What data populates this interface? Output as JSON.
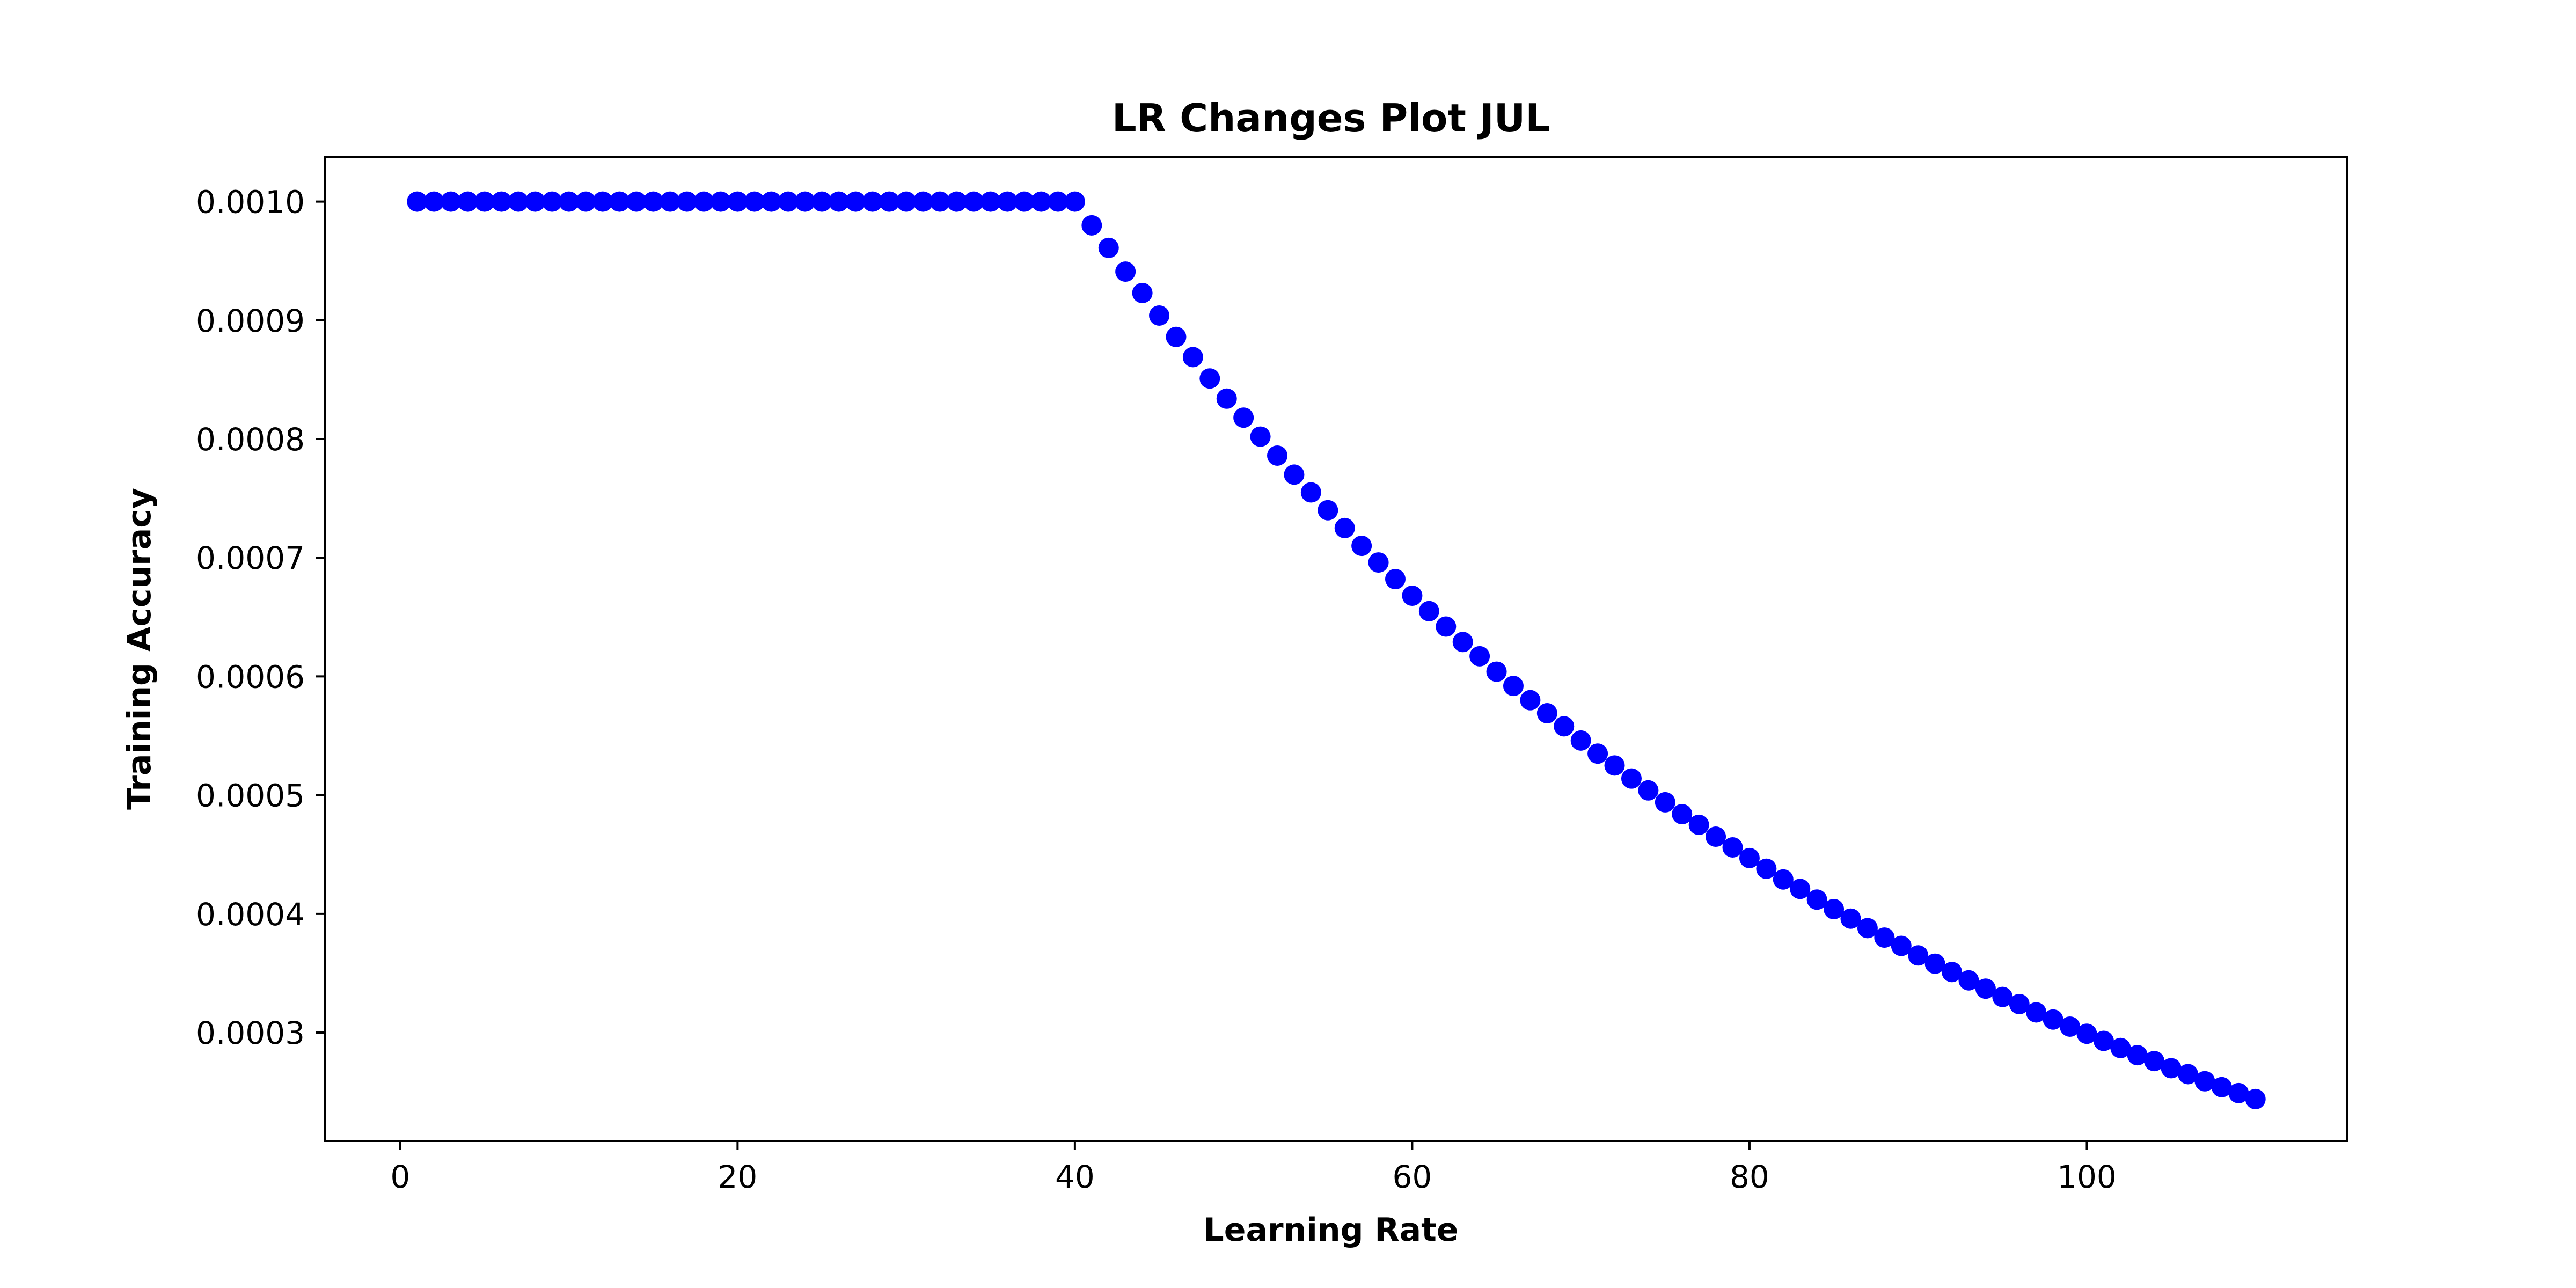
{
  "chart_data": {
    "type": "scatter",
    "title": "LR Changes Plot JUL",
    "xlabel": "Learning Rate",
    "ylabel": "Training Accuracy",
    "xlim": [
      -4.45,
      115.45
    ],
    "ylim": [
      0.0002087,
      0.0010378
    ],
    "xticks": [
      0,
      20,
      40,
      60,
      80,
      100
    ],
    "xtick_labels": [
      "0",
      "20",
      "40",
      "60",
      "80",
      "100"
    ],
    "yticks": [
      0.0003,
      0.0004,
      0.0005,
      0.0006,
      0.0007,
      0.0008,
      0.0009,
      0.001
    ],
    "ytick_labels": [
      "0.0003",
      "0.0004",
      "0.0005",
      "0.0006",
      "0.0007",
      "0.0008",
      "0.0009",
      "0.0010"
    ],
    "grid": false,
    "legend": "none",
    "marker_color": "#0000ff",
    "series": [
      {
        "x": [
          1,
          2,
          3,
          4,
          5,
          6,
          7,
          8,
          9,
          10,
          11,
          12,
          13,
          14,
          15,
          16,
          17,
          18,
          19,
          20,
          21,
          22,
          23,
          24,
          25,
          26,
          27,
          28,
          29,
          30,
          31,
          32,
          33,
          34,
          35,
          36,
          37,
          38,
          39,
          40,
          41,
          42,
          43,
          44,
          45,
          46,
          47,
          48,
          49,
          50,
          51,
          52,
          53,
          54,
          55,
          56,
          57,
          58,
          59,
          60,
          61,
          62,
          63,
          64,
          65,
          66,
          67,
          68,
          69,
          70,
          71,
          72,
          73,
          74,
          75,
          76,
          77,
          78,
          79,
          80,
          81,
          82,
          83,
          84,
          85,
          86,
          87,
          88,
          89,
          90,
          91,
          92,
          93,
          94,
          95,
          96,
          97,
          98,
          99,
          100,
          101,
          102,
          103,
          104,
          105,
          106,
          107,
          108,
          109,
          110
        ],
        "y": [
          0.001,
          0.001,
          0.001,
          0.001,
          0.001,
          0.001,
          0.001,
          0.001,
          0.001,
          0.001,
          0.001,
          0.001,
          0.001,
          0.001,
          0.001,
          0.001,
          0.001,
          0.001,
          0.001,
          0.001,
          0.001,
          0.001,
          0.001,
          0.001,
          0.001,
          0.001,
          0.001,
          0.001,
          0.001,
          0.001,
          0.001,
          0.001,
          0.001,
          0.001,
          0.001,
          0.001,
          0.001,
          0.001,
          0.001,
          0.001,
          0.00098,
          0.000961,
          0.000941,
          0.000923,
          0.000904,
          0.000886,
          0.000869,
          0.000851,
          0.000834,
          0.000818,
          0.000802,
          0.000786,
          0.00077,
          0.000755,
          0.00074,
          0.000725,
          0.00071,
          0.000696,
          0.000682,
          0.000668,
          0.000655,
          0.000642,
          0.000629,
          0.000617,
          0.000604,
          0.000592,
          0.00058,
          0.000569,
          0.000558,
          0.000546,
          0.000535,
          0.000525,
          0.000514,
          0.000504,
          0.000494,
          0.000484,
          0.000475,
          0.000465,
          0.000456,
          0.000447,
          0.000438,
          0.000429,
          0.000421,
          0.000412,
          0.000404,
          0.000396,
          0.000388,
          0.00038,
          0.000373,
          0.000365,
          0.000358,
          0.000351,
          0.000344,
          0.000337,
          0.00033,
          0.000324,
          0.000317,
          0.000311,
          0.000305,
          0.000299,
          0.000293,
          0.000287,
          0.000281,
          0.000276,
          0.00027,
          0.000265,
          0.000259,
          0.000254,
          0.000249,
          0.000244
        ]
      }
    ]
  }
}
